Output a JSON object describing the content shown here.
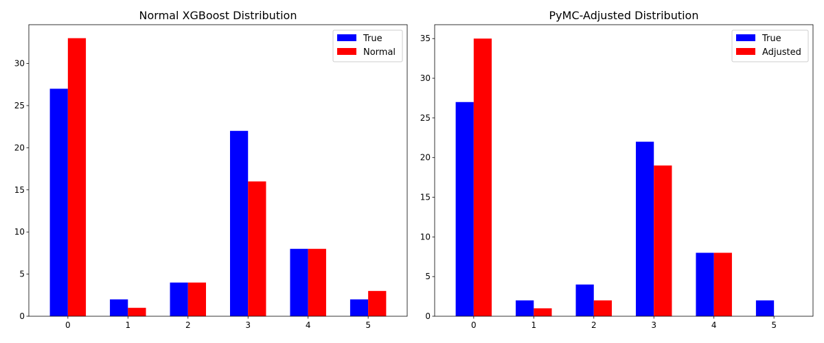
{
  "chart_data": [
    {
      "type": "bar",
      "title": "Normal XGBoost Distribution",
      "categories": [
        "0",
        "1",
        "2",
        "3",
        "4",
        "5"
      ],
      "series": [
        {
          "name": "True",
          "color": "#0000ff",
          "values": [
            27,
            2,
            4,
            22,
            8,
            2
          ]
        },
        {
          "name": "Normal",
          "color": "#ff0000",
          "values": [
            33,
            1,
            4,
            16,
            8,
            3
          ]
        }
      ],
      "xlabel": "",
      "ylabel": "",
      "ylim": [
        0,
        34.6
      ],
      "yticks": [
        0,
        5,
        10,
        15,
        20,
        25,
        30
      ],
      "legend": "top-right",
      "grid": false
    },
    {
      "type": "bar",
      "title": "PyMC-Adjusted Distribution",
      "categories": [
        "0",
        "1",
        "2",
        "3",
        "4",
        "5"
      ],
      "series": [
        {
          "name": "True",
          "color": "#0000ff",
          "values": [
            27,
            2,
            4,
            22,
            8,
            2
          ]
        },
        {
          "name": "Adjusted",
          "color": "#ff0000",
          "values": [
            35,
            1,
            2,
            19,
            8,
            0
          ]
        }
      ],
      "xlabel": "",
      "ylabel": "",
      "ylim": [
        0,
        36.75
      ],
      "yticks": [
        0,
        5,
        10,
        15,
        20,
        25,
        30,
        35
      ],
      "legend": "top-right",
      "grid": false
    }
  ]
}
